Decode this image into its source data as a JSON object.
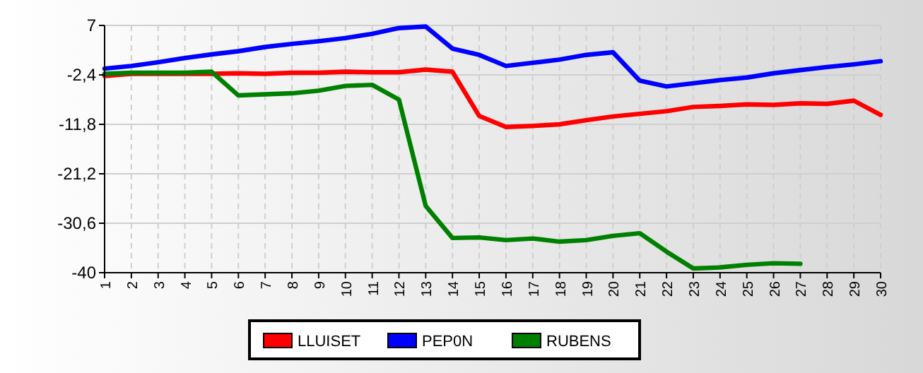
{
  "chart_data": {
    "type": "line",
    "categories": [
      "1",
      "2",
      "3",
      "4",
      "5",
      "6",
      "7",
      "8",
      "9",
      "10",
      "11",
      "12",
      "13",
      "14",
      "15",
      "16",
      "17",
      "18",
      "19",
      "20",
      "21",
      "22",
      "23",
      "24",
      "25",
      "26",
      "27",
      "28",
      "29",
      "30"
    ],
    "series": [
      {
        "name": "LLUISET",
        "color": "#ff0000",
        "values": [
          -2.6,
          -2.2,
          -2.2,
          -2.2,
          -2.2,
          -2.1,
          -2.2,
          -2.0,
          -2.0,
          -1.8,
          -1.9,
          -1.9,
          -1.4,
          -1.8,
          -10.2,
          -12.3,
          -12.1,
          -11.8,
          -11.0,
          -10.3,
          -9.8,
          -9.3,
          -8.5,
          -8.3,
          -8.0,
          -8.1,
          -7.8,
          -7.9,
          -7.3,
          -10.0
        ]
      },
      {
        "name": "PEP0N",
        "color": "#0000ff",
        "values": [
          -1.2,
          -0.7,
          0.0,
          0.8,
          1.5,
          2.1,
          2.9,
          3.5,
          4.0,
          4.6,
          5.4,
          6.5,
          6.8,
          2.6,
          1.4,
          -0.7,
          -0.1,
          0.5,
          1.4,
          1.9,
          -3.5,
          -4.6,
          -4.0,
          -3.4,
          -2.9,
          -2.1,
          -1.5,
          -0.9,
          -0.4,
          0.2
        ]
      },
      {
        "name": "RUBENS",
        "color": "#008000",
        "values": [
          -2.2,
          -2.0,
          -2.0,
          -2.0,
          -1.8,
          -6.3,
          -6.1,
          -5.9,
          -5.4,
          -4.5,
          -4.3,
          -7.1,
          -27.3,
          -33.4,
          -33.3,
          -33.8,
          -33.5,
          -34.1,
          -33.8,
          -33.0,
          -32.5,
          -36.0,
          -39.2,
          -39.0,
          -38.5,
          -38.2,
          -38.3,
          null,
          null,
          null
        ]
      }
    ],
    "ylim": [
      -40,
      7
    ],
    "yticks": [
      {
        "value": -40,
        "label": "-40"
      },
      {
        "value": -30.6,
        "label": "-30,6"
      },
      {
        "value": -21.2,
        "label": "-21,2"
      },
      {
        "value": -11.8,
        "label": "-11,8"
      },
      {
        "value": -2.4,
        "label": "-2,4"
      },
      {
        "value": 7,
        "label": "7"
      }
    ],
    "grid": true,
    "legend": "bottom",
    "line_style": "solid"
  }
}
